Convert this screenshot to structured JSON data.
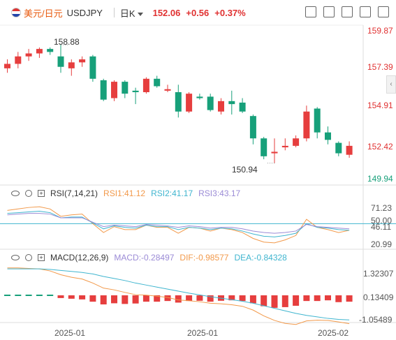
{
  "header": {
    "pair_cn": "美元/日元",
    "pair_code": "USDJPY",
    "period": "日K",
    "price": "152.06",
    "change": "+0.56",
    "change_pct": "+0.37%"
  },
  "colors": {
    "up": "#e63e3e",
    "down": "#17a07a",
    "rsi1": "#f2994a",
    "rsi2": "#3fb5cf",
    "rsi3": "#9b8bd6",
    "dif": "#f2994a",
    "dea": "#3fb5cf",
    "macd": "#e63e3e"
  },
  "price_axis": {
    "labels": [
      "159.87",
      "157.39",
      "154.91",
      "152.42",
      "149.94"
    ],
    "max_label": "158.88",
    "min_label": "150.94"
  },
  "rsi": {
    "title": "RSI(7,14,21)",
    "rsi1": "RSI1:41.12",
    "rsi2": "RSI2:41.17",
    "rsi3": "RSI3:43.17",
    "labels": [
      "71.23",
      "50.00",
      "46.11",
      "20.99"
    ]
  },
  "macd": {
    "title": "MACD(12,26,9)",
    "macd": "MACD:-0.28497",
    "dif": "DIF:-0.98577",
    "dea": "DEA:-0.84328",
    "labels": [
      "1.32307",
      "0.13409",
      "-1.05489"
    ]
  },
  "x_axis": {
    "labels": [
      "2025-01",
      "2025-01",
      "2025-02"
    ]
  },
  "chart_data": {
    "type": "candlestick",
    "ylim": [
      149.94,
      159.87
    ],
    "candles": [
      {
        "o": 157.3,
        "c": 157.6,
        "h": 157.9,
        "l": 157.0
      },
      {
        "o": 157.6,
        "c": 158.1,
        "h": 158.4,
        "l": 157.3
      },
      {
        "o": 158.1,
        "c": 158.3,
        "h": 158.6,
        "l": 157.8
      },
      {
        "o": 158.3,
        "c": 158.6,
        "h": 158.7,
        "l": 158.0
      },
      {
        "o": 158.6,
        "c": 158.4,
        "h": 158.7,
        "l": 158.2
      },
      {
        "o": 158.1,
        "c": 157.4,
        "h": 158.88,
        "l": 157.0
      },
      {
        "o": 157.3,
        "c": 157.7,
        "h": 157.9,
        "l": 156.8
      },
      {
        "o": 157.7,
        "c": 157.9,
        "h": 158.1,
        "l": 157.4
      },
      {
        "o": 158.1,
        "c": 156.6,
        "h": 158.2,
        "l": 156.4
      },
      {
        "o": 156.5,
        "c": 155.2,
        "h": 156.6,
        "l": 155.1
      },
      {
        "o": 155.3,
        "c": 156.4,
        "h": 156.5,
        "l": 155.1
      },
      {
        "o": 156.4,
        "c": 155.6,
        "h": 156.5,
        "l": 155.3
      },
      {
        "o": 155.8,
        "c": 155.7,
        "h": 156.0,
        "l": 154.9
      },
      {
        "o": 155.7,
        "c": 156.6,
        "h": 156.7,
        "l": 155.6
      },
      {
        "o": 156.6,
        "c": 156.1,
        "h": 156.8,
        "l": 156.0
      },
      {
        "o": 155.8,
        "c": 155.9,
        "h": 156.2,
        "l": 155.7
      },
      {
        "o": 155.7,
        "c": 154.4,
        "h": 156.2,
        "l": 154.0
      },
      {
        "o": 154.4,
        "c": 155.6,
        "h": 155.7,
        "l": 154.3
      },
      {
        "o": 155.4,
        "c": 155.3,
        "h": 155.6,
        "l": 155.2
      },
      {
        "o": 155.4,
        "c": 154.5,
        "h": 155.6,
        "l": 154.4
      },
      {
        "o": 154.4,
        "c": 155.1,
        "h": 155.3,
        "l": 154.2
      },
      {
        "o": 155.1,
        "c": 154.9,
        "h": 155.8,
        "l": 154.2
      },
      {
        "o": 155.0,
        "c": 154.4,
        "h": 155.3,
        "l": 154.3
      },
      {
        "o": 154.1,
        "c": 152.6,
        "h": 154.2,
        "l": 152.2
      },
      {
        "o": 152.6,
        "c": 151.4,
        "h": 152.7,
        "l": 151.2
      },
      {
        "o": 151.6,
        "c": 151.7,
        "h": 152.6,
        "l": 150.94
      },
      {
        "o": 152.0,
        "c": 152.1,
        "h": 152.6,
        "l": 151.8
      },
      {
        "o": 152.1,
        "c": 152.6,
        "h": 152.8,
        "l": 152.0
      },
      {
        "o": 152.6,
        "c": 154.4,
        "h": 154.8,
        "l": 152.4
      },
      {
        "o": 154.6,
        "c": 153.0,
        "h": 154.7,
        "l": 152.6
      },
      {
        "o": 153.0,
        "c": 152.5,
        "h": 153.4,
        "l": 152.2
      },
      {
        "o": 152.3,
        "c": 151.6,
        "h": 152.4,
        "l": 151.4
      },
      {
        "o": 151.5,
        "c": 152.1,
        "h": 152.4,
        "l": 151.3
      }
    ],
    "rsi_ylim": [
      20.99,
      71.23
    ],
    "rsi1": [
      68,
      70,
      72,
      73,
      70,
      60,
      62,
      63,
      50,
      38,
      46,
      42,
      42,
      48,
      45,
      45,
      37,
      45,
      44,
      40,
      44,
      42,
      38,
      30,
      25,
      24,
      28,
      34,
      56,
      45,
      42,
      38,
      41
    ],
    "rsi2": [
      64,
      65,
      66,
      67,
      65,
      58,
      59,
      59,
      51,
      43,
      47,
      45,
      44,
      48,
      46,
      46,
      42,
      45,
      44,
      42,
      44,
      43,
      40,
      36,
      33,
      32,
      34,
      37,
      50,
      45,
      44,
      42,
      41
    ],
    "rsi3": [
      62,
      63,
      64,
      64,
      63,
      58,
      58,
      58,
      52,
      46,
      48,
      47,
      46,
      49,
      48,
      47,
      45,
      47,
      46,
      44,
      45,
      45,
      43,
      40,
      38,
      37,
      38,
      40,
      49,
      46,
      45,
      44,
      43
    ],
    "macd_ylim": [
      -1.05489,
      1.32307
    ],
    "macd": [
      0,
      0,
      0,
      0,
      0,
      -0.12,
      -0.15,
      -0.18,
      -0.28,
      -0.4,
      -0.35,
      -0.38,
      -0.36,
      -0.28,
      -0.28,
      -0.25,
      -0.32,
      -0.25,
      -0.24,
      -0.28,
      -0.24,
      -0.22,
      -0.25,
      -0.35,
      -0.48,
      -0.55,
      -0.52,
      -0.46,
      -0.25,
      -0.25,
      -0.22,
      -0.3,
      -0.28
    ],
    "dif": [
      1.22,
      1.22,
      1.2,
      1.18,
      1.1,
      0.95,
      0.85,
      0.78,
      0.62,
      0.42,
      0.35,
      0.25,
      0.16,
      0.14,
      0.1,
      0.05,
      -0.05,
      -0.08,
      -0.12,
      -0.18,
      -0.2,
      -0.24,
      -0.3,
      -0.45,
      -0.68,
      -0.86,
      -0.98,
      -1.02,
      -0.88,
      -0.85,
      -0.86,
      -0.92,
      -0.99
    ],
    "dea": [
      1.18,
      1.18,
      1.18,
      1.18,
      1.16,
      1.12,
      1.08,
      1.04,
      0.98,
      0.88,
      0.8,
      0.72,
      0.62,
      0.54,
      0.46,
      0.38,
      0.3,
      0.22,
      0.15,
      0.08,
      0.02,
      -0.04,
      -0.1,
      -0.18,
      -0.28,
      -0.38,
      -0.48,
      -0.58,
      -0.66,
      -0.72,
      -0.78,
      -0.82,
      -0.84
    ]
  }
}
